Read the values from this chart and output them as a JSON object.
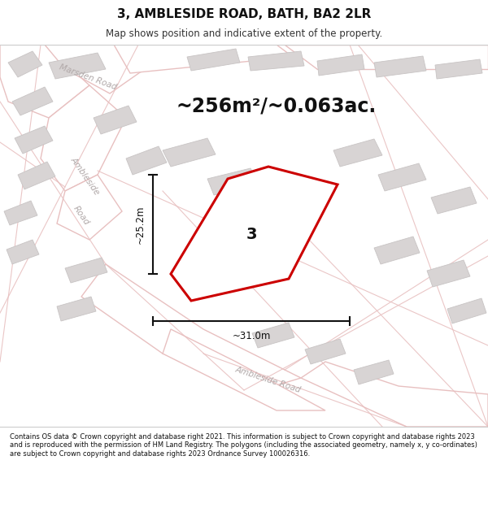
{
  "title": "3, AMBLESIDE ROAD, BATH, BA2 2LR",
  "subtitle": "Map shows position and indicative extent of the property.",
  "area_text": "~256m²/~0.063ac.",
  "dimension_h": "~25.2m",
  "dimension_w": "~31.0m",
  "plot_label": "3",
  "footer": "Contains OS data © Crown copyright and database right 2021. This information is subject to Crown copyright and database rights 2023 and is reproduced with the permission of HM Land Registry. The polygons (including the associated geometry, namely x, y co-ordinates) are subject to Crown copyright and database rights 2023 Ordnance Survey 100026316.",
  "bg_color": "#f7f5f5",
  "road_fill": "#ffffff",
  "road_edge": "#e8c0c0",
  "building_fill": "#d8d4d4",
  "building_edge": "#c8c4c4",
  "plot_stroke": "#cc0000",
  "plot_fill": "#ffffff",
  "dim_color": "#111111",
  "label_color": "#111111",
  "road_label_color": "#b0a8a8",
  "title_color": "#111111",
  "footer_color": "#111111"
}
